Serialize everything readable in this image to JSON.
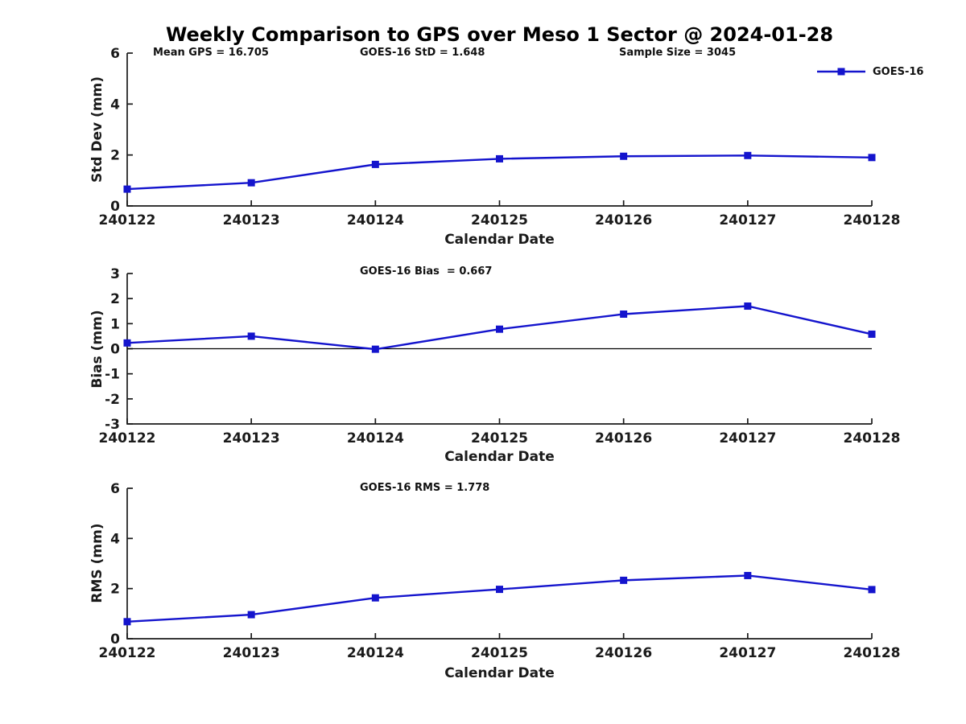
{
  "figure": {
    "title": "Weekly Comparison to GPS over Meso 1 Sector @ 2024-01-28",
    "line_color": "#1414CD",
    "axis_color": "#1a1a1a",
    "background_color": "#ffffff"
  },
  "legend": {
    "label": "GOES-16",
    "marker": "filled-square",
    "color": "#1414CD",
    "position": "top-right-outside"
  },
  "chart_data": [
    {
      "type": "line",
      "annotations": [
        "Mean GPS = 16.705",
        "GOES-16 StD = 1.648",
        "Sample Size = 3045"
      ],
      "categories": [
        "240122",
        "240123",
        "240124",
        "240125",
        "240126",
        "240127",
        "240128"
      ],
      "series": [
        {
          "name": "GOES-16",
          "values": [
            0.66,
            0.91,
            1.63,
            1.85,
            1.95,
            1.98,
            1.9
          ]
        }
      ],
      "xlabel": "Calendar Date",
      "ylabel": "Std Dev (mm)",
      "ylim": [
        0,
        6
      ],
      "yticks": [
        0,
        2,
        4,
        6
      ],
      "zero_line": false,
      "grid": false,
      "marker": "square"
    },
    {
      "type": "line",
      "annotations": [
        "GOES-16 Bias  = 0.667"
      ],
      "categories": [
        "240122",
        "240123",
        "240124",
        "240125",
        "240126",
        "240127",
        "240128"
      ],
      "series": [
        {
          "name": "GOES-16",
          "values": [
            0.23,
            0.5,
            -0.02,
            0.78,
            1.38,
            1.7,
            0.58
          ]
        }
      ],
      "xlabel": "Calendar Date",
      "ylabel": "Bias (mm)",
      "ylim": [
        -3,
        3
      ],
      "yticks": [
        -3,
        -2,
        -1,
        0,
        1,
        2,
        3
      ],
      "zero_line": true,
      "grid": false,
      "marker": "square"
    },
    {
      "type": "line",
      "annotations": [
        "GOES-16 RMS = 1.778"
      ],
      "categories": [
        "240122",
        "240123",
        "240124",
        "240125",
        "240126",
        "240127",
        "240128"
      ],
      "series": [
        {
          "name": "GOES-16",
          "values": [
            0.68,
            0.96,
            1.63,
            1.97,
            2.33,
            2.52,
            1.96
          ]
        }
      ],
      "xlabel": "Calendar Date",
      "ylabel": "RMS (mm)",
      "ylim": [
        0,
        6
      ],
      "yticks": [
        0,
        2,
        4,
        6
      ],
      "zero_line": false,
      "grid": false,
      "marker": "square"
    }
  ]
}
